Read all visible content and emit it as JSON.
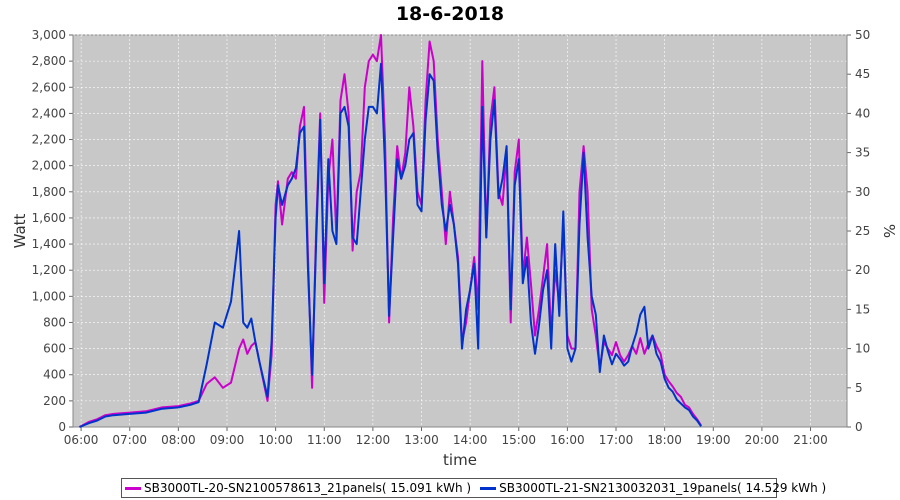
{
  "chart_data": {
    "type": "line",
    "title": "18-6-2018",
    "xlabel": "time",
    "ylabel": "Watt",
    "ylabel_right": "%",
    "ylim": [
      0,
      3000
    ],
    "ylim_right": [
      0,
      50
    ],
    "xlim": [
      "05:50",
      "21:45"
    ],
    "x_ticks": [
      "06:00",
      "07:00",
      "08:00",
      "09:00",
      "10:00",
      "11:00",
      "12:00",
      "13:00",
      "14:00",
      "15:00",
      "16:00",
      "17:00",
      "18:00",
      "19:00",
      "20:00",
      "21:00"
    ],
    "y_ticks": [
      "0",
      "200",
      "400",
      "600",
      "800",
      "1,000",
      "1,200",
      "1,400",
      "1,600",
      "1,800",
      "2,000",
      "2,200",
      "2,400",
      "2,600",
      "2,800",
      "3,000"
    ],
    "y_ticks_right": [
      "0",
      "5",
      "10",
      "15",
      "20",
      "25",
      "30",
      "35",
      "40",
      "45",
      "50"
    ],
    "grid": true,
    "legend_position": "bottom",
    "series": [
      {
        "name": "SB3000TL-20-SN2100578613_21panels( 15.091 kWh )",
        "color": "#cc00cc",
        "points": [
          [
            "05:58",
            0
          ],
          [
            "06:10",
            40
          ],
          [
            "06:20",
            60
          ],
          [
            "06:30",
            90
          ],
          [
            "06:40",
            100
          ],
          [
            "07:00",
            110
          ],
          [
            "07:20",
            120
          ],
          [
            "07:40",
            150
          ],
          [
            "08:00",
            160
          ],
          [
            "08:15",
            180
          ],
          [
            "08:25",
            200
          ],
          [
            "08:35",
            330
          ],
          [
            "08:45",
            380
          ],
          [
            "08:55",
            300
          ],
          [
            "09:05",
            340
          ],
          [
            "09:15",
            600
          ],
          [
            "09:20",
            670
          ],
          [
            "09:25",
            560
          ],
          [
            "09:30",
            620
          ],
          [
            "09:35",
            650
          ],
          [
            "09:40",
            500
          ],
          [
            "09:50",
            200
          ],
          [
            "09:55",
            550
          ],
          [
            "10:00",
            1700
          ],
          [
            "10:03",
            1880
          ],
          [
            "10:08",
            1550
          ],
          [
            "10:15",
            1900
          ],
          [
            "10:20",
            1950
          ],
          [
            "10:25",
            1900
          ],
          [
            "10:30",
            2300
          ],
          [
            "10:35",
            2450
          ],
          [
            "10:40",
            1300
          ],
          [
            "10:45",
            300
          ],
          [
            "10:50",
            1500
          ],
          [
            "10:55",
            2400
          ],
          [
            "11:00",
            950
          ],
          [
            "11:05",
            1900
          ],
          [
            "11:10",
            2200
          ],
          [
            "11:15",
            1450
          ],
          [
            "11:20",
            2500
          ],
          [
            "11:25",
            2700
          ],
          [
            "11:30",
            2400
          ],
          [
            "11:35",
            1350
          ],
          [
            "11:40",
            1800
          ],
          [
            "11:45",
            1950
          ],
          [
            "11:50",
            2600
          ],
          [
            "11:55",
            2800
          ],
          [
            "12:00",
            2850
          ],
          [
            "12:05",
            2800
          ],
          [
            "12:10",
            3000
          ],
          [
            "12:15",
            2200
          ],
          [
            "12:20",
            800
          ],
          [
            "12:25",
            1600
          ],
          [
            "12:30",
            2150
          ],
          [
            "12:35",
            1900
          ],
          [
            "12:40",
            2100
          ],
          [
            "12:45",
            2600
          ],
          [
            "12:50",
            2300
          ],
          [
            "12:55",
            1800
          ],
          [
            "13:00",
            1700
          ],
          [
            "13:05",
            2500
          ],
          [
            "13:10",
            2950
          ],
          [
            "13:15",
            2800
          ],
          [
            "13:20",
            2200
          ],
          [
            "13:25",
            1800
          ],
          [
            "13:30",
            1400
          ],
          [
            "13:35",
            1800
          ],
          [
            "13:40",
            1550
          ],
          [
            "13:45",
            1300
          ],
          [
            "13:50",
            650
          ],
          [
            "13:55",
            800
          ],
          [
            "14:00",
            1050
          ],
          [
            "14:05",
            1300
          ],
          [
            "14:10",
            900
          ],
          [
            "14:15",
            2800
          ],
          [
            "14:20",
            1450
          ],
          [
            "14:25",
            2350
          ],
          [
            "14:30",
            2600
          ],
          [
            "14:35",
            1800
          ],
          [
            "14:40",
            1700
          ],
          [
            "14:45",
            2100
          ],
          [
            "14:50",
            800
          ],
          [
            "14:55",
            1950
          ],
          [
            "15:00",
            2200
          ],
          [
            "15:05",
            1150
          ],
          [
            "15:10",
            1450
          ],
          [
            "15:15",
            1100
          ],
          [
            "15:20",
            700
          ],
          [
            "15:25",
            900
          ],
          [
            "15:30",
            1150
          ],
          [
            "15:35",
            1400
          ],
          [
            "15:40",
            700
          ],
          [
            "15:45",
            1200
          ],
          [
            "15:50",
            950
          ],
          [
            "15:55",
            1550
          ],
          [
            "16:00",
            700
          ],
          [
            "16:05",
            600
          ],
          [
            "16:10",
            600
          ],
          [
            "16:15",
            1800
          ],
          [
            "16:20",
            2150
          ],
          [
            "16:25",
            1800
          ],
          [
            "16:30",
            900
          ],
          [
            "16:35",
            700
          ],
          [
            "16:40",
            450
          ],
          [
            "16:45",
            650
          ],
          [
            "16:50",
            600
          ],
          [
            "16:55",
            550
          ],
          [
            "17:00",
            650
          ],
          [
            "17:05",
            550
          ],
          [
            "17:10",
            500
          ],
          [
            "17:15",
            550
          ],
          [
            "17:20",
            620
          ],
          [
            "17:25",
            560
          ],
          [
            "17:30",
            680
          ],
          [
            "17:35",
            560
          ],
          [
            "17:40",
            640
          ],
          [
            "17:45",
            700
          ],
          [
            "17:50",
            620
          ],
          [
            "17:55",
            560
          ],
          [
            "18:00",
            400
          ],
          [
            "18:05",
            350
          ],
          [
            "18:10",
            310
          ],
          [
            "18:15",
            260
          ],
          [
            "18:20",
            230
          ],
          [
            "18:25",
            170
          ],
          [
            "18:30",
            150
          ],
          [
            "18:35",
            100
          ],
          [
            "18:40",
            60
          ],
          [
            "18:45",
            10
          ]
        ]
      },
      {
        "name": "SB3000TL-21-SN2130032031_19panels( 14.529 kWh )",
        "color": "#0033cc",
        "points": [
          [
            "05:58",
            0
          ],
          [
            "06:10",
            30
          ],
          [
            "06:20",
            50
          ],
          [
            "06:30",
            80
          ],
          [
            "06:40",
            90
          ],
          [
            "07:00",
            100
          ],
          [
            "07:20",
            110
          ],
          [
            "07:40",
            140
          ],
          [
            "08:00",
            150
          ],
          [
            "08:15",
            170
          ],
          [
            "08:25",
            190
          ],
          [
            "08:35",
            480
          ],
          [
            "08:45",
            800
          ],
          [
            "08:55",
            760
          ],
          [
            "09:05",
            960
          ],
          [
            "09:15",
            1500
          ],
          [
            "09:20",
            800
          ],
          [
            "09:25",
            760
          ],
          [
            "09:30",
            830
          ],
          [
            "09:35",
            650
          ],
          [
            "09:40",
            500
          ],
          [
            "09:50",
            230
          ],
          [
            "09:55",
            650
          ],
          [
            "10:00",
            1600
          ],
          [
            "10:03",
            1850
          ],
          [
            "10:08",
            1700
          ],
          [
            "10:15",
            1850
          ],
          [
            "10:20",
            1900
          ],
          [
            "10:25",
            1980
          ],
          [
            "10:30",
            2250
          ],
          [
            "10:35",
            2300
          ],
          [
            "10:40",
            1200
          ],
          [
            "10:45",
            400
          ],
          [
            "10:50",
            1400
          ],
          [
            "10:55",
            2350
          ],
          [
            "11:00",
            1100
          ],
          [
            "11:05",
            2050
          ],
          [
            "11:10",
            1500
          ],
          [
            "11:15",
            1400
          ],
          [
            "11:20",
            2400
          ],
          [
            "11:25",
            2450
          ],
          [
            "11:30",
            2300
          ],
          [
            "11:35",
            1450
          ],
          [
            "11:40",
            1400
          ],
          [
            "11:45",
            1800
          ],
          [
            "11:50",
            2200
          ],
          [
            "11:55",
            2450
          ],
          [
            "12:00",
            2450
          ],
          [
            "12:05",
            2400
          ],
          [
            "12:10",
            2780
          ],
          [
            "12:15",
            2000
          ],
          [
            "12:20",
            850
          ],
          [
            "12:25",
            1450
          ],
          [
            "12:30",
            2050
          ],
          [
            "12:35",
            1900
          ],
          [
            "12:40",
            2000
          ],
          [
            "12:45",
            2200
          ],
          [
            "12:50",
            2250
          ],
          [
            "12:55",
            1700
          ],
          [
            "13:00",
            1650
          ],
          [
            "13:05",
            2350
          ],
          [
            "13:10",
            2700
          ],
          [
            "13:15",
            2650
          ],
          [
            "13:20",
            2100
          ],
          [
            "13:25",
            1700
          ],
          [
            "13:30",
            1500
          ],
          [
            "13:35",
            1700
          ],
          [
            "13:40",
            1550
          ],
          [
            "13:45",
            1250
          ],
          [
            "13:50",
            600
          ],
          [
            "13:55",
            900
          ],
          [
            "14:00",
            1050
          ],
          [
            "14:05",
            1250
          ],
          [
            "14:10",
            600
          ],
          [
            "14:15",
            2450
          ],
          [
            "14:20",
            1450
          ],
          [
            "14:25",
            2200
          ],
          [
            "14:30",
            2500
          ],
          [
            "14:35",
            1750
          ],
          [
            "14:40",
            1900
          ],
          [
            "14:45",
            2150
          ],
          [
            "14:50",
            900
          ],
          [
            "14:55",
            1850
          ],
          [
            "15:00",
            2050
          ],
          [
            "15:05",
            1100
          ],
          [
            "15:10",
            1300
          ],
          [
            "15:15",
            800
          ],
          [
            "15:20",
            560
          ],
          [
            "15:25",
            780
          ],
          [
            "15:30",
            1050
          ],
          [
            "15:35",
            1200
          ],
          [
            "15:40",
            600
          ],
          [
            "15:45",
            1400
          ],
          [
            "15:50",
            850
          ],
          [
            "15:55",
            1650
          ],
          [
            "16:00",
            600
          ],
          [
            "16:05",
            500
          ],
          [
            "16:10",
            600
          ],
          [
            "16:15",
            1550
          ],
          [
            "16:20",
            2100
          ],
          [
            "16:25",
            1450
          ],
          [
            "16:30",
            1000
          ],
          [
            "16:35",
            860
          ],
          [
            "16:40",
            420
          ],
          [
            "16:45",
            700
          ],
          [
            "16:50",
            580
          ],
          [
            "16:55",
            480
          ],
          [
            "17:00",
            560
          ],
          [
            "17:05",
            520
          ],
          [
            "17:10",
            470
          ],
          [
            "17:15",
            500
          ],
          [
            "17:20",
            620
          ],
          [
            "17:25",
            720
          ],
          [
            "17:30",
            860
          ],
          [
            "17:35",
            920
          ],
          [
            "17:40",
            600
          ],
          [
            "17:45",
            700
          ],
          [
            "17:50",
            560
          ],
          [
            "17:55",
            500
          ],
          [
            "18:00",
            370
          ],
          [
            "18:05",
            300
          ],
          [
            "18:10",
            270
          ],
          [
            "18:15",
            210
          ],
          [
            "18:20",
            180
          ],
          [
            "18:25",
            150
          ],
          [
            "18:30",
            130
          ],
          [
            "18:35",
            80
          ],
          [
            "18:40",
            50
          ],
          [
            "18:45",
            5
          ]
        ]
      }
    ]
  }
}
